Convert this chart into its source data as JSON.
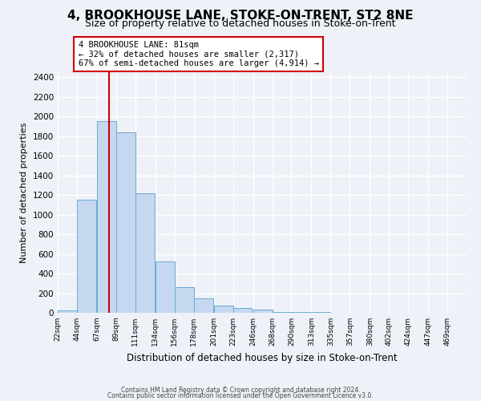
{
  "title": "4, BROOKHOUSE LANE, STOKE-ON-TRENT, ST2 8NE",
  "subtitle": "Size of property relative to detached houses in Stoke-on-Trent",
  "xlabel": "Distribution of detached houses by size in Stoke-on-Trent",
  "ylabel": "Number of detached properties",
  "bar_values": [
    25,
    1150,
    1950,
    1840,
    1220,
    520,
    265,
    148,
    75,
    45,
    35,
    10,
    8,
    5,
    3,
    2,
    1,
    1,
    0,
    0
  ],
  "bin_labels": [
    "22sqm",
    "44sqm",
    "67sqm",
    "89sqm",
    "111sqm",
    "134sqm",
    "156sqm",
    "178sqm",
    "201sqm",
    "223sqm",
    "246sqm",
    "268sqm",
    "290sqm",
    "313sqm",
    "335sqm",
    "357sqm",
    "380sqm",
    "402sqm",
    "424sqm",
    "447sqm",
    "469sqm"
  ],
  "bar_color": "#c5d8f0",
  "bar_edge_color": "#6aaad4",
  "vline_x": 81,
  "vline_color": "#cc0000",
  "bin_edges": [
    22,
    44,
    67,
    89,
    111,
    134,
    156,
    178,
    201,
    223,
    246,
    268,
    290,
    313,
    335,
    357,
    380,
    402,
    424,
    447,
    469
  ],
  "xlim_end": 491,
  "ylim": [
    0,
    2450
  ],
  "yticks": [
    0,
    200,
    400,
    600,
    800,
    1000,
    1200,
    1400,
    1600,
    1800,
    2000,
    2200,
    2400
  ],
  "annotation_title": "4 BROOKHOUSE LANE: 81sqm",
  "annotation_line1": "← 32% of detached houses are smaller (2,317)",
  "annotation_line2": "67% of semi-detached houses are larger (4,914) →",
  "footer1": "Contains HM Land Registry data © Crown copyright and database right 2024.",
  "footer2": "Contains public sector information licensed under the Open Government Licence v3.0.",
  "bg_color": "#eef2f8",
  "grid_color": "#ffffff",
  "title_fontsize": 11,
  "subtitle_fontsize": 9
}
